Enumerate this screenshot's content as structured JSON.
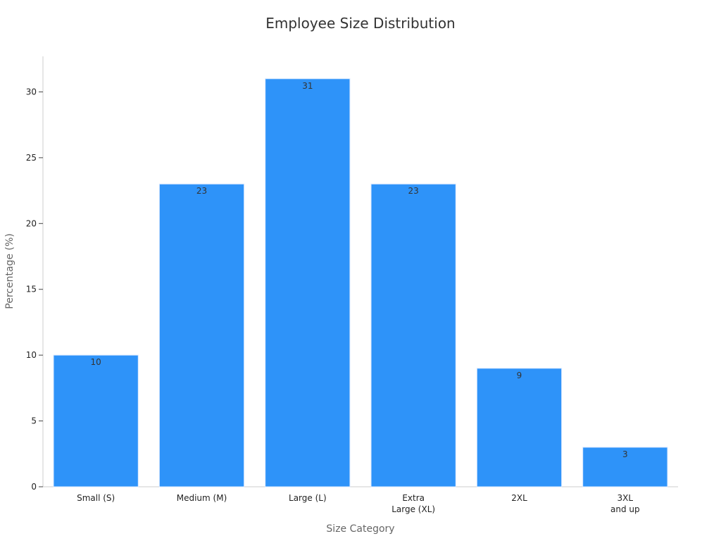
{
  "chart_data": {
    "type": "bar",
    "title": "Employee Size Distribution",
    "xlabel": "Size Category",
    "ylabel": "Percentage (%)",
    "categories": [
      [
        "Small (S)"
      ],
      [
        "Medium (M)"
      ],
      [
        "Large (L)"
      ],
      [
        "Extra",
        "Large (XL)"
      ],
      [
        "2XL"
      ],
      [
        "3XL",
        "and up"
      ]
    ],
    "values": [
      10,
      23,
      31,
      23,
      9,
      3
    ],
    "data_labels": [
      "10",
      "23",
      "31",
      "23",
      "9",
      "3"
    ],
    "yticks": [
      0,
      5,
      10,
      15,
      20,
      25,
      30
    ],
    "ylim": [
      0,
      32.7
    ],
    "grid": false,
    "legend": "none",
    "bar_color": "#2e93f9"
  }
}
